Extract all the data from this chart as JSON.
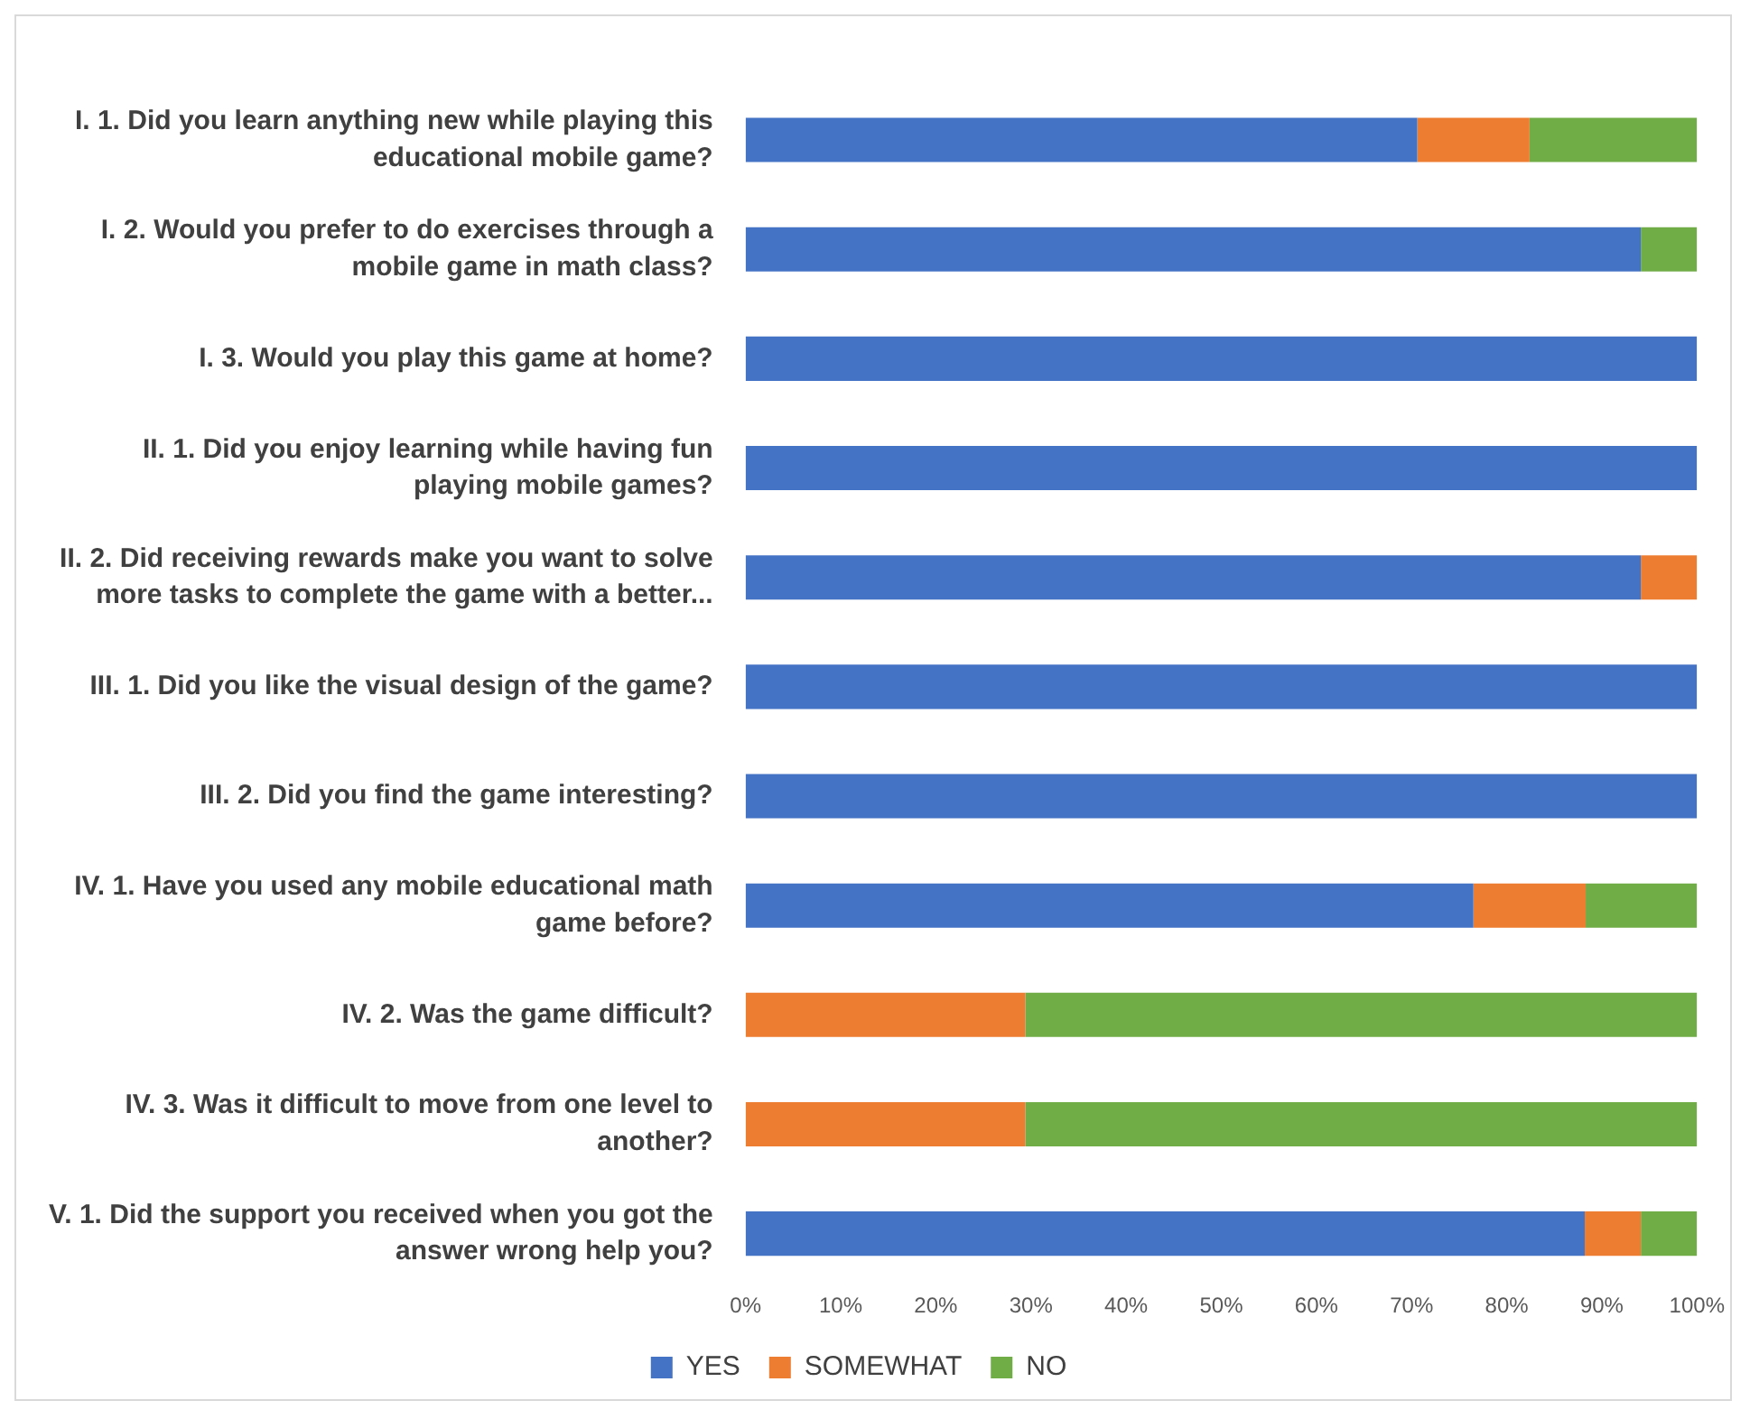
{
  "chart_data": {
    "type": "bar",
    "orientation": "horizontal",
    "stacked": true,
    "categories": [
      "I. 1. Did you learn anything new while playing this educational mobile game?",
      "I. 2. Would you prefer to do exercises through a mobile game in math class?",
      "I. 3. Would you play this game at home?",
      "II. 1. Did you enjoy learning while having fun playing mobile games?",
      "II. 2. Did receiving rewards make you want to solve more tasks to complete the game with a better...",
      "III. 1. Did you like the visual design of the game?",
      "III. 2. Did you find the game interesting?",
      "IV. 1. Have you used any mobile educational math game before?",
      "IV. 2. Was the game difficult?",
      "IV. 3. Was it difficult to move from one level to another?",
      "V. 1. Did the support you received when you got the answer wrong help you?"
    ],
    "series": [
      {
        "name": "YES",
        "color": "#4472c4",
        "values": [
          70.6,
          94.1,
          100,
          100,
          94.1,
          100,
          100,
          76.5,
          0,
          0,
          88.2
        ]
      },
      {
        "name": "SOMEWHAT",
        "color": "#ed7d31",
        "values": [
          11.8,
          0,
          0,
          0,
          5.9,
          0,
          0,
          11.8,
          29.4,
          29.4,
          5.9
        ]
      },
      {
        "name": "NO",
        "color": "#70ad47",
        "values": [
          17.6,
          5.9,
          0,
          0,
          0,
          0,
          0,
          11.7,
          70.6,
          70.6,
          5.9
        ]
      }
    ],
    "xlim": [
      0,
      100
    ],
    "xticks": [
      {
        "value": 0,
        "label": "0%"
      },
      {
        "value": 10,
        "label": "10%"
      },
      {
        "value": 20,
        "label": "20%"
      },
      {
        "value": 30,
        "label": "30%"
      },
      {
        "value": 40,
        "label": "40%"
      },
      {
        "value": 50,
        "label": "50%"
      },
      {
        "value": 60,
        "label": "60%"
      },
      {
        "value": 70,
        "label": "70%"
      },
      {
        "value": 80,
        "label": "80%"
      },
      {
        "value": 90,
        "label": "90%"
      },
      {
        "value": 100,
        "label": "100%"
      }
    ],
    "grid": false,
    "legend": "bottom"
  }
}
